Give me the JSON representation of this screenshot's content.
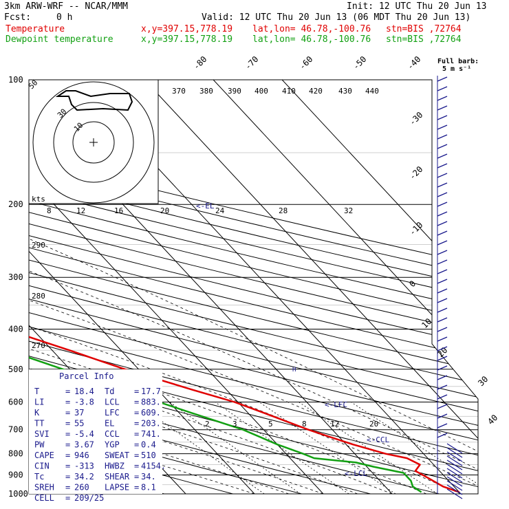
{
  "header": {
    "model": "3km ARW-WRF -- NCAR/MMM",
    "init": "Init: 12 UTC Thu 20 Jun 13",
    "fcst_label": "Fcst:",
    "fcst_value": "0 h",
    "valid": "Valid: 12 UTC Thu 20 Jun 13 (06 MDT Thu 20 Jun 13)"
  },
  "series_info": [
    {
      "name": "Temperature",
      "xy": "x,y=397.15,778.19",
      "latlon": "lat,lon= 46.78,-100.76",
      "stn": "stn=BIS ,72764",
      "color": "#e00000"
    },
    {
      "name": "Dewpoint temperature",
      "xy": "x,y=397.15,778.19",
      "latlon": "lat,lon= 46.78,-100.76",
      "stn": "stn=BIS ,72764",
      "color": "#12a012"
    }
  ],
  "chart_data": {
    "type": "line",
    "pressure_ticks": [
      100,
      200,
      300,
      400,
      500,
      600,
      700,
      800,
      900,
      1000
    ],
    "isotherm_labels_top": [
      "-80",
      "-70",
      "-60",
      "-50",
      "-40"
    ],
    "isotherm_labels_right": [
      "-30",
      "-20",
      "-10",
      "0",
      "10",
      "20",
      "30",
      "40"
    ],
    "theta_labels_top": [
      "370",
      "380",
      "390",
      "400",
      "410",
      "420",
      "430",
      "440"
    ],
    "theta_labels_left": [
      "290",
      "280",
      "270"
    ],
    "mixing_ratio_labels": [
      "2",
      "3",
      "5",
      "8",
      "12",
      "20"
    ],
    "hodograph": {
      "units": "kts",
      "ring_labels": [
        "10",
        "30",
        "50"
      ],
      "speed_axis_labels": [
        "8",
        "12",
        "16",
        "20",
        "24",
        "28",
        "32"
      ]
    },
    "level_markers": [
      "<-EL",
      "<-LFC",
      "<-CCL",
      "<-LCL"
    ],
    "wind_barb_legend": "Full barb: 5 m s⁻¹",
    "series": [
      {
        "name": "Temperature",
        "color": "#e00000",
        "points": [
          [
            990,
            20.0
          ],
          [
            960,
            18.4
          ],
          [
            920,
            17.5
          ],
          [
            880,
            16.5
          ],
          [
            850,
            18.0
          ],
          [
            820,
            17.0
          ],
          [
            800,
            14.5
          ],
          [
            760,
            11.0
          ],
          [
            720,
            8.0
          ],
          [
            700,
            6.5
          ],
          [
            640,
            2.5
          ],
          [
            600,
            -0.5
          ],
          [
            560,
            -5.0
          ],
          [
            500,
            -12.0
          ],
          [
            450,
            -17.5
          ],
          [
            400,
            -24.0
          ],
          [
            350,
            -31.0
          ],
          [
            300,
            -39.0
          ],
          [
            250,
            -48.5
          ],
          [
            210,
            -57.0
          ],
          [
            190,
            -59.5
          ],
          [
            170,
            -59.0
          ],
          [
            150,
            -57.5
          ],
          [
            130,
            -57.5
          ],
          [
            112,
            -59.5
          ],
          [
            100,
            -63.0
          ]
        ]
      },
      {
        "name": "Dewpoint temperature",
        "color": "#12a012",
        "points": [
          [
            990,
            14.5
          ],
          [
            960,
            14.0
          ],
          [
            930,
            14.5
          ],
          [
            890,
            14.5
          ],
          [
            860,
            11.0
          ],
          [
            840,
            9.0
          ],
          [
            820,
            3.5
          ],
          [
            800,
            2.5
          ],
          [
            760,
            0.0
          ],
          [
            700,
            -3.0
          ],
          [
            640,
            -8.0
          ],
          [
            600,
            -11.5
          ],
          [
            560,
            -15.0
          ],
          [
            500,
            -21.0
          ],
          [
            450,
            -26.5
          ],
          [
            400,
            -32.0
          ],
          [
            350,
            -38.0
          ],
          [
            300,
            -46.0
          ],
          [
            250,
            -55.0
          ],
          [
            200,
            -66.0
          ],
          [
            170,
            -71.0
          ],
          [
            150,
            -73.5
          ],
          [
            130,
            -74.5
          ],
          [
            115,
            -76.0
          ],
          [
            100,
            -81.0
          ]
        ]
      }
    ]
  },
  "parcel_info": {
    "title": "Parcel Info",
    "rows": [
      [
        {
          "k": "T",
          "v": "18.4"
        },
        {
          "k": "Td",
          "v": "17.7"
        }
      ],
      [
        {
          "k": "LI",
          "v": "-3.8"
        },
        {
          "k": "LCL",
          "v": "883."
        }
      ],
      [
        {
          "k": "K",
          "v": "37"
        },
        {
          "k": "LFC",
          "v": "609."
        }
      ],
      [
        {
          "k": "TT",
          "v": "55"
        },
        {
          "k": "EL",
          "v": "203."
        }
      ],
      [
        {
          "k": "SVI",
          "v": "-5.4"
        },
        {
          "k": "CCL",
          "v": "741."
        }
      ],
      [
        {
          "k": "PW",
          "v": "3.67"
        },
        {
          "k": "YGP",
          "v": "0.4"
        }
      ],
      [
        {
          "k": "CAPE",
          "v": "946"
        },
        {
          "k": "SWEAT",
          "v": "510"
        }
      ],
      [
        {
          "k": "CIN",
          "v": "-313"
        },
        {
          "k": "HWBZ",
          "v": "4154."
        }
      ],
      [
        {
          "k": "Tc",
          "v": "34.2"
        },
        {
          "k": "SHEAR",
          "v": "34."
        }
      ],
      [
        {
          "k": "SREH",
          "v": "260"
        },
        {
          "k": "LAPSE",
          "v": "8.1"
        }
      ],
      [
        {
          "k": "CELL",
          "v": "209/25"
        },
        {
          "k": "",
          "v": ""
        }
      ]
    ]
  }
}
